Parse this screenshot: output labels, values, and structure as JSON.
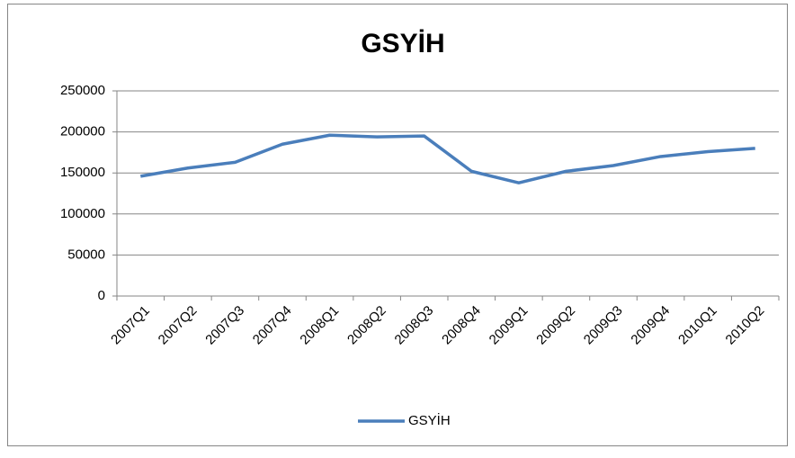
{
  "chart_data": {
    "type": "line",
    "title": "GSYİH",
    "categories": [
      "2007Q1",
      "2007Q2",
      "2007Q3",
      "2007Q4",
      "2008Q1",
      "2008Q2",
      "2008Q3",
      "2008Q4",
      "2009Q1",
      "2009Q2",
      "2009Q3",
      "2009Q4",
      "2010Q1",
      "2010Q2"
    ],
    "series": [
      {
        "name": "GSYİH",
        "color": "#4a7ebb",
        "values": [
          146000,
          156000,
          163000,
          185000,
          196000,
          194000,
          195000,
          152000,
          138000,
          152000,
          159000,
          170000,
          176000,
          180000
        ]
      }
    ],
    "ylim": [
      0,
      250000
    ],
    "yticks": [
      0,
      50000,
      100000,
      150000,
      200000,
      250000
    ],
    "grid": true,
    "legend": "bottom"
  }
}
